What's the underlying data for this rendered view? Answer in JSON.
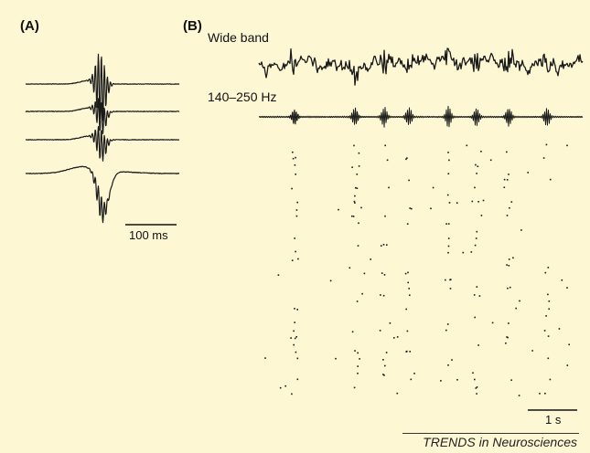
{
  "panel_a": {
    "label": "(A)",
    "scale_bar_label": "100 ms"
  },
  "panel_b": {
    "label": "(B)",
    "wide_band_label": "Wide band",
    "filtered_label": "140–250 Hz",
    "scale_bar_label": "1 s"
  },
  "footer": {
    "source": "TRENDS in Neurosciences"
  },
  "colors": {
    "background": "#fdf7d4",
    "trace": "#1a1a1a"
  }
}
